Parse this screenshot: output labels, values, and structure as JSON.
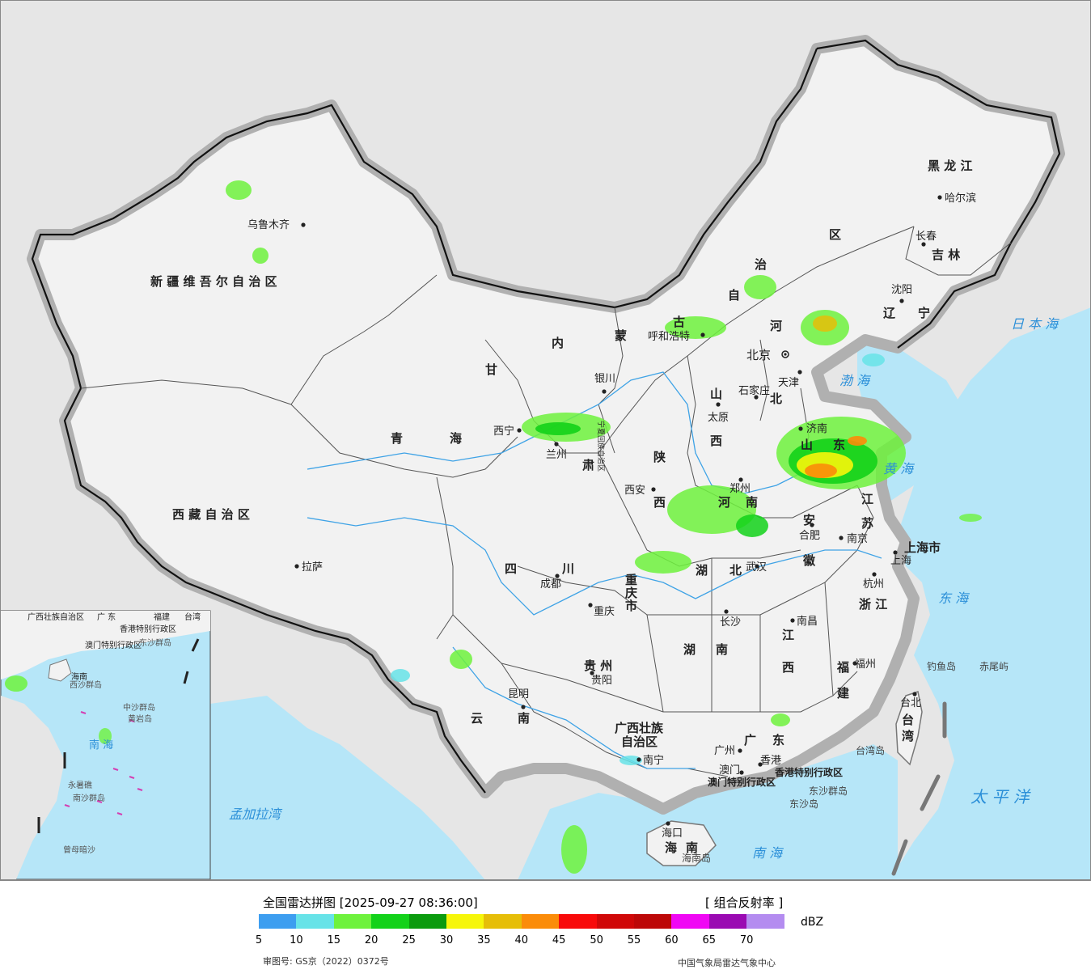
{
  "legend": {
    "title": "全国雷达拼图 [2025-09-27 08:36:00]",
    "product": "[ 组合反射率 ]",
    "unit": "dBZ",
    "approval": "审图号: GS京（2022）0372号",
    "source": "中国气象局雷达气象中心",
    "scale": [
      {
        "value": "5",
        "color": "#3d9ef0"
      },
      {
        "value": "10",
        "color": "#67e3e8"
      },
      {
        "value": "15",
        "color": "#6ef23d"
      },
      {
        "value": "20",
        "color": "#13d21a"
      },
      {
        "value": "25",
        "color": "#0b9b0e"
      },
      {
        "value": "30",
        "color": "#f6f60a"
      },
      {
        "value": "35",
        "color": "#e6be08"
      },
      {
        "value": "40",
        "color": "#fb8c09"
      },
      {
        "value": "45",
        "color": "#f80a0a"
      },
      {
        "value": "50",
        "color": "#d00808"
      },
      {
        "value": "55",
        "color": "#bd0808"
      },
      {
        "value": "60",
        "color": "#f007f4"
      },
      {
        "value": "65",
        "color": "#9a0ab2"
      },
      {
        "value": "70",
        "color": "#b48cf0"
      }
    ]
  },
  "regions": {
    "xinjiang": "新 疆 维 吾 尔 自 治 区",
    "xizang": "西 藏 自 治 区",
    "qinghai_1": "青",
    "qinghai_2": "海",
    "gansu_1": "甘",
    "gansu_2": "肃",
    "neimenggu_1": "内",
    "neimenggu_2": "蒙",
    "neimenggu_3": "古",
    "neimenggu_4": "自",
    "neimenggu_5": "治",
    "neimenggu_6": "区",
    "heilongjiang": "黑 龙 江",
    "jilin": "吉 林",
    "liaoning_1": "辽",
    "liaoning_2": "宁",
    "hebei_1": "河",
    "hebei_2": "北",
    "shanxi_1": "山",
    "shanxi_2": "西",
    "shaanxi_1": "陕",
    "shaanxi_2": "西",
    "shandong_1": "山",
    "shandong_2": "东",
    "henan_1": "河",
    "henan_2": "南",
    "jiangsu_1": "江",
    "jiangsu_2": "苏",
    "anhui_1": "安",
    "anhui_2": "徽",
    "shanghai": "上海市",
    "zhejiang": "浙 江",
    "hubei_1": "湖",
    "hubei_2": "北",
    "hunan_1": "湖",
    "hunan_2": "南",
    "jiangxi_1": "江",
    "jiangxi_2": "西",
    "fujian_1": "福",
    "fujian_2": "建",
    "sichuan_1": "四",
    "sichuan_2": "川",
    "chongqing_1": "重",
    "chongqing_2": "庆",
    "chongqing_3": "市",
    "guizhou": "贵 州",
    "yunnan_1": "云",
    "yunnan_2": "南",
    "guangxi_1": "广西壮族",
    "guangxi_2": "自治区",
    "guangdong_1": "广",
    "guangdong_2": "东",
    "hainan_1": "海",
    "hainan_2": "南",
    "taiwan_1": "台",
    "taiwan_2": "湾",
    "ningxia": "宁夏回族自治区",
    "hk_sar": "香港特别行政区",
    "macau_sar": "澳门特别行政区",
    "tianjin": "天津",
    "beijing": "北京"
  },
  "cities": {
    "urumqi": "乌鲁木齐",
    "lhasa": "拉萨",
    "xining": "西宁",
    "lanzhou": "兰州",
    "yinchuan": "银川",
    "huhehaote": "呼和浩特",
    "harbin": "哈尔滨",
    "changchun": "长春",
    "shenyang": "沈阳",
    "beijing": "北京",
    "tianjin": "天津",
    "shijiazhuang": "石家庄",
    "taiyuan": "太原",
    "jinan": "济南",
    "zhengzhou": "郑州",
    "xian": "西安",
    "hefei": "合肥",
    "nanjing": "南京",
    "shanghai": "上海",
    "hangzhou": "杭州",
    "wuhan": "武汉",
    "chengdu": "成都",
    "chongqing": "重庆",
    "changsha": "长沙",
    "nanchang": "南昌",
    "fuzhou": "福州",
    "guiyang": "贵阳",
    "kunming": "昆明",
    "nanning": "南宁",
    "guangzhou": "广州",
    "hongkong": "香港",
    "macau": "澳门",
    "haikou": "海口",
    "taibei": "台北"
  },
  "islands": {
    "diaoyu": "钓鱼岛",
    "chiwei": "赤尾屿",
    "taiwan_island": "台湾岛",
    "dongsha_islands": "东沙群岛",
    "dongsha": "东沙岛",
    "hainan_island": "海南岛"
  },
  "seas": {
    "bohai": "渤 海",
    "huanghai": "黄 海",
    "donghai": "东 海",
    "nanhai": "南 海",
    "ribenhai": "日 本 海",
    "taipingyang": "太 平 洋",
    "mengjiala": "孟加拉湾"
  },
  "inset": {
    "guangxi": "广西壮族自治区",
    "guangdong": "广 东",
    "fujian": "福建",
    "taiwan": "台湾",
    "hk": "香港特别行政区",
    "macau": "澳门特别行政区",
    "dongsha": "东沙群岛",
    "hainan": "海南",
    "xisha": "西沙群岛",
    "zhongsha": "中沙群岛",
    "huangyan": "黄岩岛",
    "nansha": "南沙群岛",
    "yongshu": "永暑礁",
    "zengmu": "曾母暗沙",
    "nanhai": "南 海"
  }
}
